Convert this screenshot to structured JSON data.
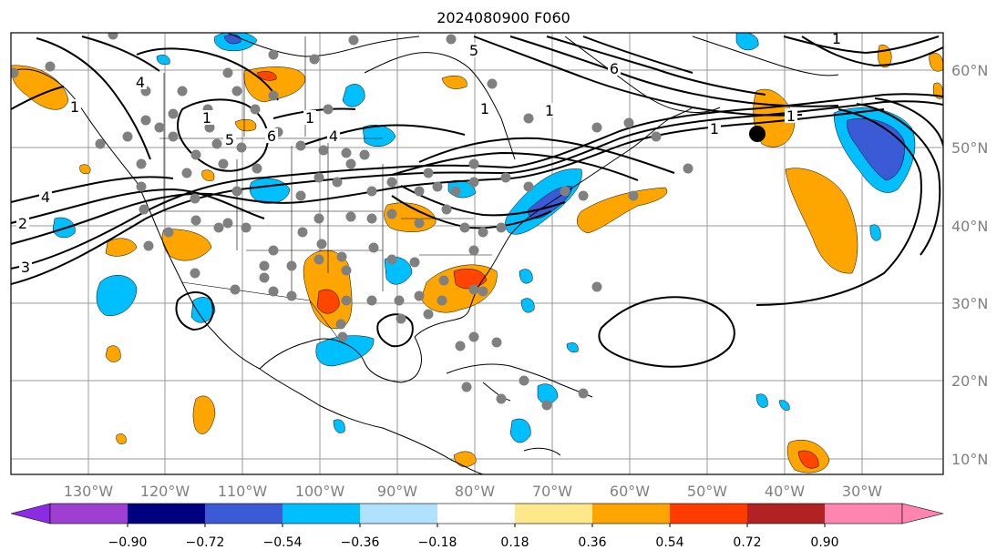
{
  "title": "2024080900 F060",
  "axis": {
    "lon_labels": [
      "130°W",
      "120°W",
      "110°W",
      "100°W",
      "90°W",
      "80°W",
      "70°W",
      "60°W",
      "50°W",
      "40°W",
      "30°W"
    ],
    "lat_labels": [
      "60°N",
      "50°N",
      "40°N",
      "30°N",
      "20°N",
      "10°N"
    ]
  },
  "contour_labels": [
    "4",
    "1",
    "2",
    "3",
    "4",
    "1",
    "5",
    "6",
    "1",
    "4",
    "1",
    "5",
    "6",
    "1",
    "1",
    "1",
    "1"
  ],
  "colorbar": {
    "ticks": [
      "−0.90",
      "−0.72",
      "−0.54",
      "−0.36",
      "−0.18",
      "0.18",
      "0.36",
      "0.54",
      "0.72",
      "0.90"
    ],
    "colors": [
      "#8b2be2",
      "#9e3fd1",
      "#000080",
      "#3b5bd6",
      "#00bfff",
      "#b0e2ff",
      "#ffffff",
      "#ffe88a",
      "#ffa500",
      "#ff3c00",
      "#b22222",
      "#ff85b0"
    ]
  },
  "colors": {
    "positive_mid": "#ffa500",
    "positive_high": "#ff4500",
    "negative_mid": "#00bfff",
    "negative_high": "#3b5bd6",
    "station": "#808080",
    "marker": "#000000"
  }
}
